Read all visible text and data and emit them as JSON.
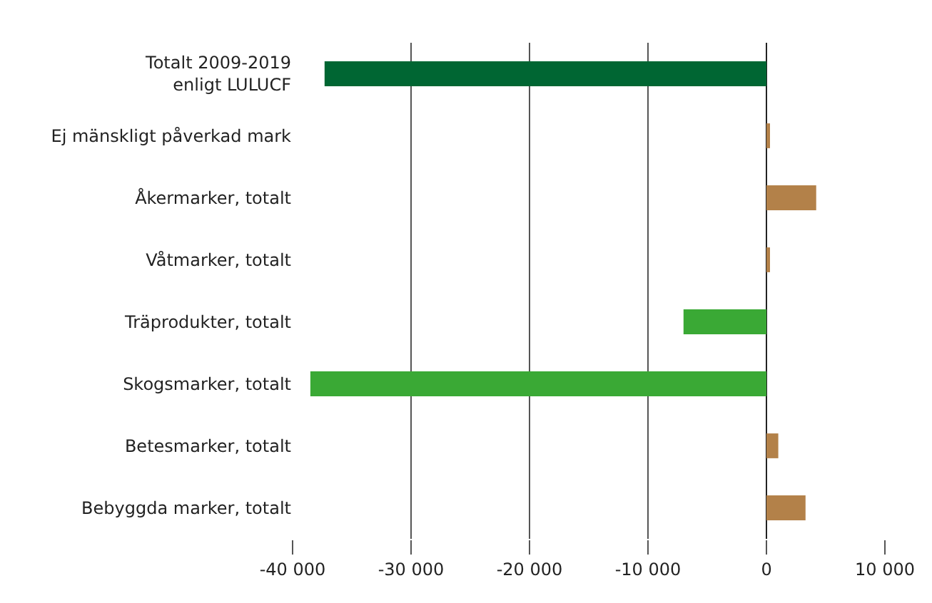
{
  "chart_data": {
    "type": "bar",
    "orientation": "horizontal",
    "categories": [
      "Totalt 2009-2019\nenligt LULUCF",
      "Ej mänskligt påverkad mark",
      "Åkermarker, totalt",
      "Våtmarker, totalt",
      "Träprodukter, totalt",
      "Skogsmarker, totalt",
      "Betesmarker, totalt",
      "Bebyggda marker, totalt"
    ],
    "values": [
      -37300,
      300,
      4200,
      300,
      -7000,
      -38500,
      1000,
      3300
    ],
    "colors": [
      "#006633",
      "#b38149",
      "#b38149",
      "#b38149",
      "#3aa935",
      "#3aa935",
      "#b38149",
      "#b38149"
    ],
    "xlim": [
      -40000,
      10000
    ],
    "xticks": [
      {
        "value": -40000,
        "label": "-40 000"
      },
      {
        "value": -30000,
        "label": "-30 000"
      },
      {
        "value": -20000,
        "label": "-20 000"
      },
      {
        "value": -10000,
        "label": "-10 000"
      },
      0,
      {
        "value": 10000,
        "label": "10 000"
      }
    ],
    "grid": "x"
  }
}
